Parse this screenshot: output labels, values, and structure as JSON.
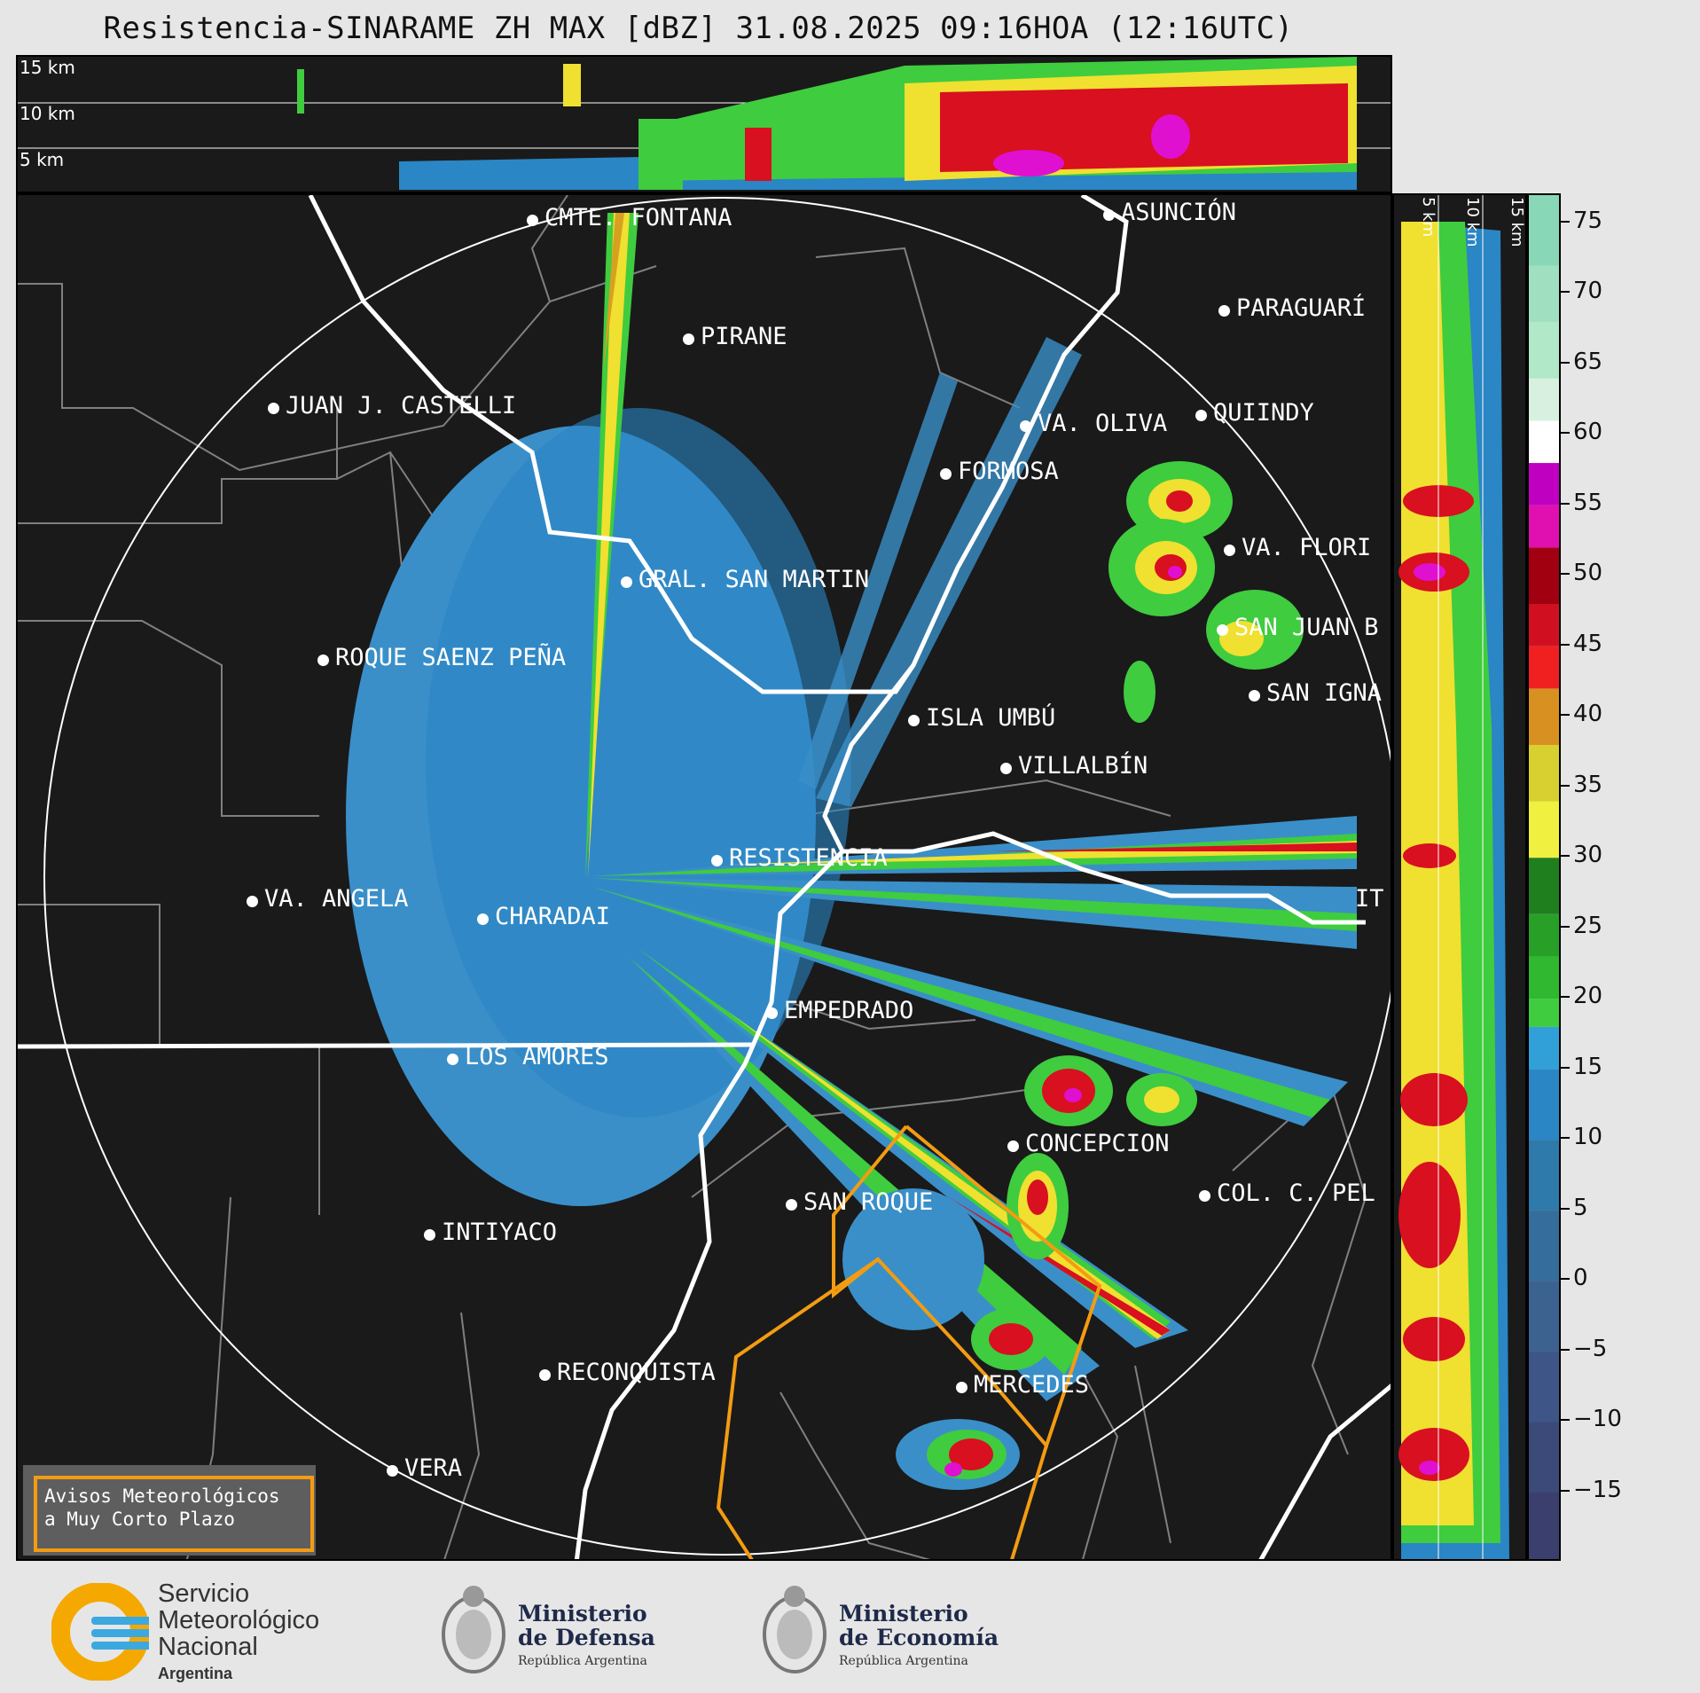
{
  "title": "Resistencia-SINARAME ZH MAX [dBZ] 31.08.2025 09:16HOA (12:16UTC)",
  "top_panel": {
    "altitudes": [
      "15 km",
      "10 km",
      "5 km"
    ]
  },
  "side_panel": {
    "altitudes": [
      "5 km",
      "10 km",
      "15 km"
    ]
  },
  "cities": [
    {
      "name": "CMTE. FONTANA",
      "key": "cmte-fontana"
    },
    {
      "name": "ASUNCIÓN",
      "key": "asuncion"
    },
    {
      "name": "PIRANE",
      "key": "pirane"
    },
    {
      "name": "PARAGUARÍ",
      "key": "paraguari"
    },
    {
      "name": "JUAN J. CASTELLI",
      "key": "juan-j-castelli"
    },
    {
      "name": "VA. OLIVA",
      "key": "va-oliva"
    },
    {
      "name": "QUIINDY",
      "key": "quiindy"
    },
    {
      "name": "FORMOSA",
      "key": "formosa"
    },
    {
      "name": "VA. FLORI",
      "key": "va-flori"
    },
    {
      "name": "GRAL. SAN MARTIN",
      "key": "gral-san-martin"
    },
    {
      "name": "SAN JUAN B",
      "key": "san-juan-b"
    },
    {
      "name": "ROQUE SAENZ PEÑA",
      "key": "roque-saenz-pena"
    },
    {
      "name": "SAN IGNA",
      "key": "san-igna"
    },
    {
      "name": "ISLA UMBÚ",
      "key": "isla-umbu"
    },
    {
      "name": "VILLALBÍN",
      "key": "villalbin"
    },
    {
      "name": "RESISTENCIA",
      "key": "resistencia"
    },
    {
      "name": "VA. ANGELA",
      "key": "va-angela"
    },
    {
      "name": "CHARADAI",
      "key": "charadai"
    },
    {
      "name": "IT",
      "key": "it"
    },
    {
      "name": "EMPEDRADO",
      "key": "empedrado"
    },
    {
      "name": "LOS AMORES",
      "key": "los-amores"
    },
    {
      "name": "CONCEPCION",
      "key": "concepcion"
    },
    {
      "name": "COL. C. PEL",
      "key": "col-c-pel"
    },
    {
      "name": "SAN ROQUE",
      "key": "san-roque"
    },
    {
      "name": "INTIYACO",
      "key": "intiyaco"
    },
    {
      "name": "RECONQUISTA",
      "key": "reconquista"
    },
    {
      "name": "MERCEDES",
      "key": "mercedes"
    },
    {
      "name": "VERA",
      "key": "vera"
    }
  ],
  "alert_box": {
    "line1": "Avisos Meteorológicos",
    "line2": "a Muy Corto Plazo"
  },
  "colorbar": {
    "unit": "dBZ",
    "ticks": [
      "75",
      "70",
      "65",
      "60",
      "55",
      "50",
      "45",
      "40",
      "35",
      "30",
      "25",
      "20",
      "15",
      "10",
      "5",
      "0",
      "−5",
      "−10",
      "−15"
    ],
    "min": -20,
    "max": 77
  },
  "footer": {
    "smn": {
      "line1": "Servicio",
      "line2": "Meteorológico",
      "line3": "Nacional",
      "sub": "Argentina"
    },
    "defensa": {
      "line1": "Ministerio",
      "line2": "de Defensa",
      "sub": "República Argentina"
    },
    "economia": {
      "line1": "Ministerio",
      "line2": "de Economía",
      "sub": "República Argentina"
    }
  },
  "colors": {
    "background": "#1a1a1a",
    "range_ring": "#ffffff",
    "borders": "#ffffff",
    "admin_borders": "#808080",
    "alert_polygon": "#f39c12",
    "echo_light": "#3a8fc8",
    "echo_green": "#3fcc3f",
    "echo_yellow": "#f0e030",
    "echo_red": "#d81020",
    "echo_magenta": "#e010d0"
  }
}
